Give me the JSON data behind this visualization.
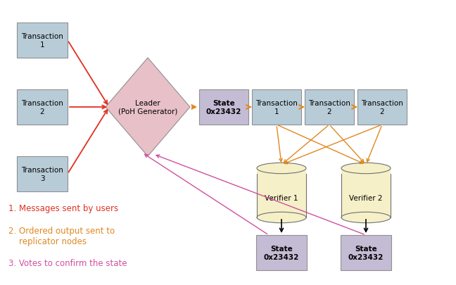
{
  "bg_color": "#ffffff",
  "box_color_blue": "#b8ccd8",
  "box_color_purple": "#c4bcd4",
  "diamond_color": "#e8c0c8",
  "cylinder_color": "#f5f0c8",
  "arrow_red": "#e03020",
  "arrow_orange": "#e08820",
  "arrow_pink": "#d050a0",
  "arrow_black": "#000000",
  "legend": [
    {
      "color": "#e03020",
      "text": "1. Messages sent by users"
    },
    {
      "color": "#e08820",
      "text": "2. Ordered output sent to\n    replicator nodes"
    },
    {
      "color": "#d050a0",
      "text": "3. Votes to confirm the state"
    }
  ]
}
